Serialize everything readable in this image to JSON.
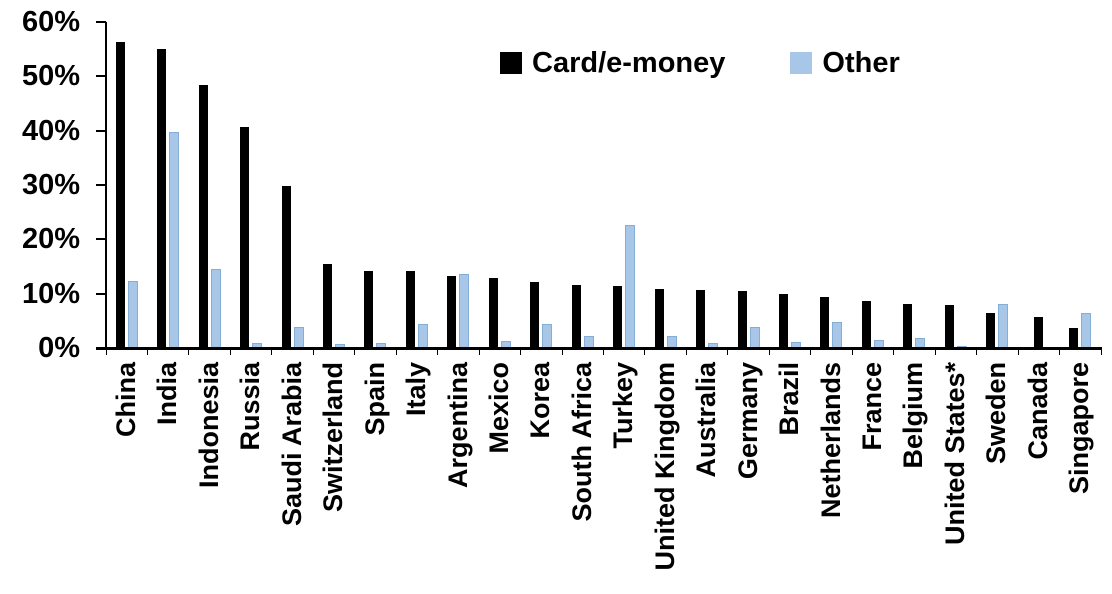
{
  "chart_data": {
    "type": "bar",
    "title": "",
    "categories": [
      "China",
      "India",
      "Indonesia",
      "Russia",
      "Saudi Arabia",
      "Switzerland",
      "Spain",
      "Italy",
      "Argentina",
      "Mexico",
      "Korea",
      "South Africa",
      "Turkey",
      "United Kingdom",
      "Australia",
      "Germany",
      "Brazil",
      "Netherlands",
      "France",
      "Belgium",
      "United States*",
      "Sweden",
      "Canada",
      "Singapore"
    ],
    "series": [
      {
        "name": "Card/e-money",
        "color": "#000000",
        "values": [
          56.3,
          55.1,
          48.4,
          40.6,
          29.9,
          15.5,
          14.1,
          14.1,
          13.2,
          12.9,
          12.2,
          11.6,
          11.5,
          10.9,
          10.7,
          10.5,
          9.9,
          9.3,
          8.7,
          8.1,
          7.9,
          6.5,
          5.8,
          3.6
        ]
      },
      {
        "name": "Other",
        "color": "#a8c7e8",
        "values": [
          12.3,
          39.8,
          14.6,
          1.0,
          3.8,
          0.8,
          1.0,
          4.5,
          13.7,
          1.2,
          4.5,
          2.3,
          22.6,
          2.3,
          0.9,
          3.9,
          1.1,
          4.7,
          1.5,
          1.9,
          0.3,
          8.1,
          0,
          6.5
        ]
      }
    ],
    "xlabel": "",
    "ylabel": "",
    "ylim": [
      0,
      60
    ],
    "ytick_labels": [
      "0%",
      "10%",
      "20%",
      "30%",
      "40%",
      "50%",
      "60%"
    ],
    "grid": false,
    "legend_position": "top-center",
    "x_label_rotation_deg": 90
  }
}
